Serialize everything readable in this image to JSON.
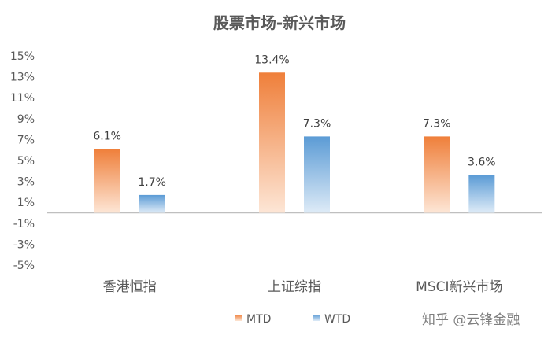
{
  "chart_data": {
    "type": "bar",
    "title": "股票市场-新兴市场",
    "categories": [
      "香港恒指",
      "上证综指",
      "MSCI新兴市场"
    ],
    "series": [
      {
        "name": "MTD",
        "values": [
          6.1,
          13.4,
          7.3
        ],
        "labels": [
          "6.1%",
          "13.4%",
          "7.3%"
        ],
        "color": "#ef7f3a"
      },
      {
        "name": "WTD",
        "values": [
          1.7,
          7.3,
          3.6
        ],
        "labels": [
          "1.7%",
          "7.3%",
          "3.6%"
        ],
        "color": "#5b9bd5"
      }
    ],
    "ylim": [
      -5,
      15
    ],
    "yticks": [
      15,
      13,
      11,
      9,
      7,
      5,
      3,
      1,
      -1,
      -3,
      -5
    ],
    "ytick_labels": [
      "15%",
      "13%",
      "11%",
      "9%",
      "7%",
      "5%",
      "3%",
      "1%",
      "-1%",
      "-3%",
      "-5%"
    ],
    "xlabel": "",
    "ylabel": "",
    "grid": false,
    "legend_position": "bottom"
  },
  "watermark": "知乎 @云锋金融"
}
